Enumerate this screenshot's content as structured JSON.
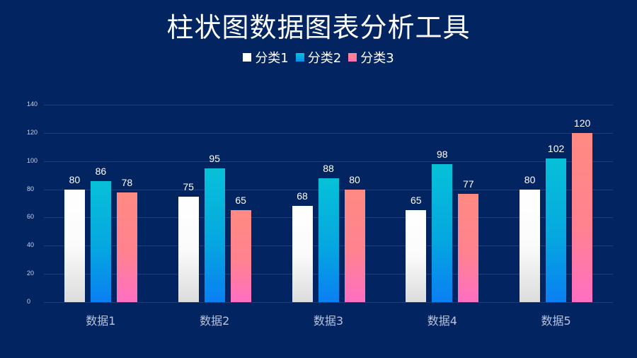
{
  "title": "柱状图数据图表分析工具",
  "legend": [
    {
      "label": "分类1",
      "color": "#ffffff"
    },
    {
      "label": "分类2",
      "color": "#06b6e0"
    },
    {
      "label": "分类3",
      "color": "#ff7f8a"
    }
  ],
  "chart_data": {
    "type": "bar",
    "title": "柱状图数据图表分析工具",
    "categories": [
      "数据1",
      "数据2",
      "数据3",
      "数据4",
      "数据5"
    ],
    "series": [
      {
        "name": "分类1",
        "values": [
          80,
          75,
          68,
          65,
          80
        ]
      },
      {
        "name": "分类2",
        "values": [
          86,
          95,
          88,
          98,
          102
        ]
      },
      {
        "name": "分类3",
        "values": [
          78,
          65,
          80,
          77,
          120
        ]
      }
    ],
    "xlabel": "",
    "ylabel": "",
    "ylim": [
      0,
      140
    ],
    "yticks": [
      "0",
      "20",
      "40",
      "60",
      "80",
      "100",
      "120",
      "140"
    ],
    "grid": true,
    "legend_position": "top",
    "data_labels": true
  }
}
